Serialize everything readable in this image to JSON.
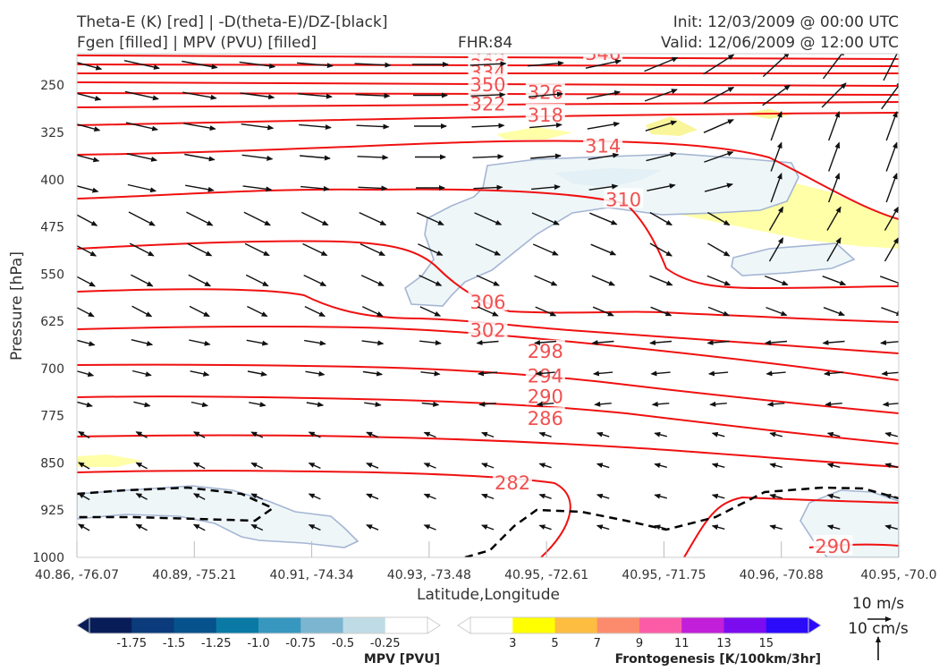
{
  "header": {
    "line1_left": "Theta-E (K) [red] | -D(theta-E)/DZ-[black]",
    "line2_left": "Fgen [filled] | MPV (PVU) [filled]",
    "fhr": "FHR:84",
    "init": "Init: 12/03/2009 @ 00:00 UTC",
    "valid": "Valid: 12/06/2009 @ 12:00 UTC"
  },
  "chart_data": {
    "type": "cross-section",
    "xlabel": "Latitude,Longitude",
    "ylabel": "Pressure [hPa]",
    "ylim": [
      1000,
      200
    ],
    "x_ticks": [
      "40.86, -76.07",
      "40.89, -75.21",
      "40.91, -74.34",
      "40.93, -73.48",
      "40.95, -72.61",
      "40.95, -71.75",
      "40.96, -70.88",
      "40.95, -70.0"
    ],
    "y_ticks": [
      250,
      325,
      400,
      475,
      550,
      625,
      700,
      775,
      850,
      925,
      1000
    ],
    "theta_e_labels": [
      {
        "text": "346",
        "x": 0.64,
        "p": 200
      },
      {
        "text": "342",
        "x": 0.5,
        "p": 210
      },
      {
        "text": "338",
        "x": 0.5,
        "p": 220
      },
      {
        "text": "334",
        "x": 0.5,
        "p": 230
      },
      {
        "text": "350",
        "x": 0.5,
        "p": 250
      },
      {
        "text": "326",
        "x": 0.57,
        "p": 262
      },
      {
        "text": "322",
        "x": 0.5,
        "p": 280
      },
      {
        "text": "318",
        "x": 0.57,
        "p": 298
      },
      {
        "text": "314",
        "x": 0.64,
        "p": 347
      },
      {
        "text": "310",
        "x": 0.665,
        "p": 432
      },
      {
        "text": "306",
        "x": 0.5,
        "p": 595
      },
      {
        "text": "302",
        "x": 0.5,
        "p": 640
      },
      {
        "text": "298",
        "x": 0.57,
        "p": 673
      },
      {
        "text": "294",
        "x": 0.57,
        "p": 712
      },
      {
        "text": "290",
        "x": 0.57,
        "p": 745
      },
      {
        "text": "286",
        "x": 0.57,
        "p": 780
      },
      {
        "text": "282",
        "x": 0.53,
        "p": 882
      },
      {
        "text": "290",
        "x": 0.92,
        "p": 983
      }
    ],
    "colorbar_mpv": {
      "title": "MPV [PVU]",
      "ticks": [
        "-1.75",
        "-1.5",
        "-1.25",
        "-1.0",
        "-0.75",
        "-0.5",
        "-0.25"
      ],
      "colors": [
        "#081d58",
        "#0b3b7a",
        "#06528d",
        "#0a7aa5",
        "#3797be",
        "#7bb5d0",
        "#bfdce6",
        "#ffffff"
      ]
    },
    "colorbar_fgen": {
      "title": "Frontogenesis [K/100km/3hr]",
      "ticks": [
        "3",
        "5",
        "7",
        "9",
        "11",
        "13",
        "15"
      ],
      "colors": [
        "#ffffff",
        "#ffff00",
        "#fcbd40",
        "#fb8b6c",
        "#fa5da6",
        "#c11fd9",
        "#7b0cf0",
        "#2c0bfb"
      ]
    },
    "quiver_key": {
      "u_label": "10 m/s",
      "w_label": "10 cm/s"
    }
  }
}
